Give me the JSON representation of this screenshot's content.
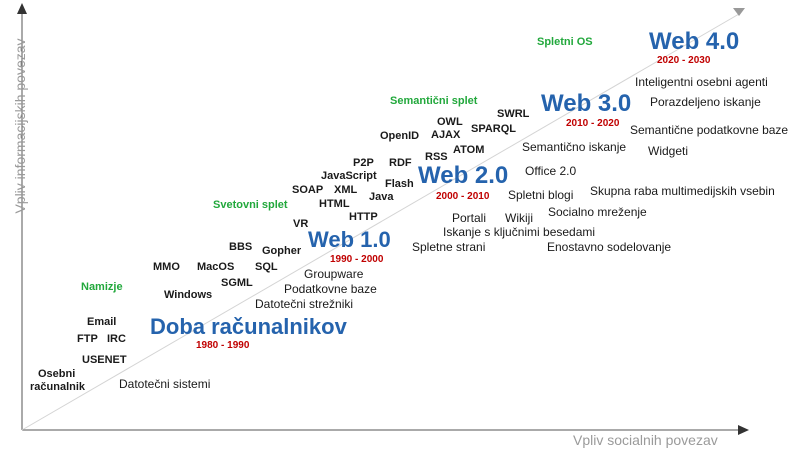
{
  "axes": {
    "y_label": "Vpliv informacijskih povezav",
    "x_label": "Vpliv socialnih povezav"
  },
  "eras": [
    {
      "name": "Doba računalnikov",
      "years": "1980 - 1990"
    },
    {
      "name": "Web 1.0",
      "years": "1990 - 2000"
    },
    {
      "name": "Web 2.0",
      "years": "2000 - 2010"
    },
    {
      "name": "Web 3.0",
      "years": "2010 - 2020"
    },
    {
      "name": "Web 4.0",
      "years": "2020 - 2030"
    }
  ],
  "categories": [
    "Namizje",
    "Svetovni splet",
    "Semantični splet",
    "Spletni OS"
  ],
  "technologies": {
    "pc": [
      "Osebni",
      "računalnik",
      "USENET",
      "FTP",
      "IRC",
      "Email"
    ],
    "web1": [
      "Windows",
      "SGML",
      "MMO",
      "MacOS",
      "SQL",
      "BBS",
      "Gopher",
      "VR"
    ],
    "web2": [
      "HTTP",
      "HTML",
      "Java",
      "SOAP",
      "XML",
      "JavaScript",
      "Flash",
      "P2P",
      "RDF",
      "RSS"
    ],
    "web3": [
      "OpenID",
      "AJAX",
      "ATOM",
      "OWL",
      "SPARQL",
      "SWRL"
    ]
  },
  "uses": {
    "pc": [
      "Datotečni sistemi"
    ],
    "web1": [
      "Groupware",
      "Podatkovne baze",
      "Datotečni strežniki"
    ],
    "web2": [
      "Spletni blogi",
      "Skupna raba multimedijskih vsebin",
      "Portali",
      "Wikiji",
      "Socialno mreženje",
      "Iskanje s ključnimi besedami",
      "Spletne strani",
      "Enostavno sodelovanje"
    ],
    "web3": [
      "Office 2.0",
      "Semantično iskanje",
      "Semantične podatkovne baze",
      "Widgeti"
    ],
    "web4": [
      "Inteligentni osebni agenti",
      "Porazdeljeno iskanje"
    ]
  }
}
